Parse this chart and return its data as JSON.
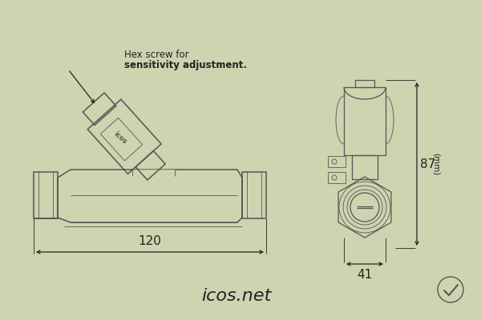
{
  "bg_color": "#cdd4b0",
  "line_color": "#555555",
  "dim_color": "#222222",
  "title": "icos.net",
  "title_fontsize": 16,
  "annotation_text1": "Hex screw for",
  "annotation_text2": "sensitivity adjustment.",
  "dim_120": "120",
  "dim_41": "41",
  "dim_87": "87",
  "dim_mm": "(mm)",
  "lw": 1.1,
  "lw_thin": 0.6,
  "lw_med": 0.9
}
